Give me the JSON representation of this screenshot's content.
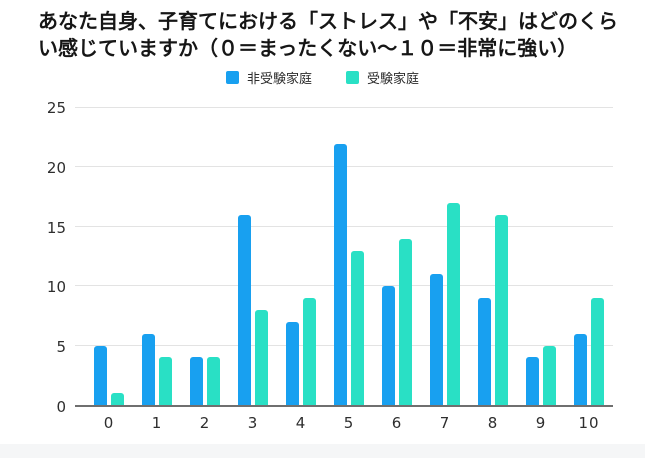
{
  "title": "あなた自身、子育てにおける「ストレス」や「不安」はどのくらい感じていますか（０＝まったくない〜１０＝非常に強い）",
  "colors": {
    "series_blue": "#18a0f0",
    "series_teal": "#29e0c5",
    "gridline": "#e3e3e3",
    "axis_line": "#6f6f6f",
    "text": "#161616"
  },
  "chart_data": {
    "type": "bar",
    "title": "あなた自身、子育てにおける「ストレス」や「不安」はどのくらい感じていますか（０＝まったくない〜１０＝非常に強い）",
    "categories": [
      "0",
      "1",
      "2",
      "3",
      "4",
      "5",
      "6",
      "7",
      "8",
      "9",
      "10"
    ],
    "series": [
      {
        "name": "非受験家庭",
        "color": "#18a0f0",
        "values": [
          5,
          6,
          4,
          16,
          7,
          22,
          10,
          11,
          9,
          4,
          6
        ]
      },
      {
        "name": "受験家庭",
        "color": "#29e0c5",
        "values": [
          1,
          4,
          4,
          8,
          9,
          13,
          14,
          17,
          16,
          5,
          9
        ]
      }
    ],
    "xlabel": "",
    "ylabel": "",
    "ylim": [
      0,
      25
    ],
    "yticks": [
      0,
      5,
      10,
      15,
      20,
      25
    ],
    "grid": true,
    "legend_position": "top-center"
  }
}
